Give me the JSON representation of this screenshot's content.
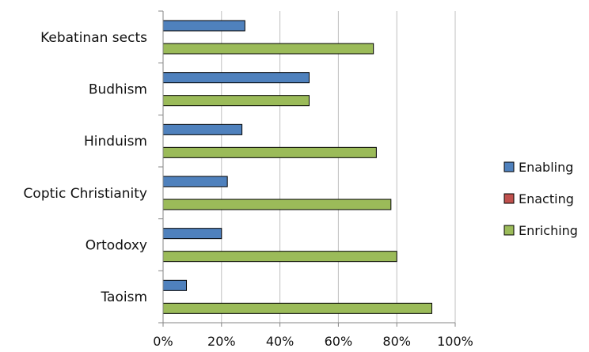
{
  "chart_data": {
    "type": "bar",
    "orientation": "horizontal",
    "categories": [
      "Kebatinan sects",
      "Budhism",
      "Hinduism",
      "Coptic Christianity",
      "Ortodoxy",
      "Taoism"
    ],
    "series": [
      {
        "name": "Enabling",
        "color": "#4F81BD",
        "values": [
          0.28,
          0.5,
          0.27,
          0.22,
          0.2,
          0.08
        ]
      },
      {
        "name": "Enacting",
        "color": "#C0504D",
        "values": [
          0,
          0,
          0,
          0,
          0,
          0
        ]
      },
      {
        "name": "Enriching",
        "color": "#9BBB59",
        "values": [
          0.72,
          0.5,
          0.73,
          0.78,
          0.8,
          0.92
        ]
      }
    ],
    "x_ticks": [
      "0%",
      "20%",
      "40%",
      "60%",
      "80%",
      "100%"
    ],
    "xlim": [
      0,
      1
    ],
    "x_format": "percent",
    "grid": "vertical",
    "legend_position": "right",
    "title": "",
    "xlabel": "",
    "ylabel": ""
  }
}
